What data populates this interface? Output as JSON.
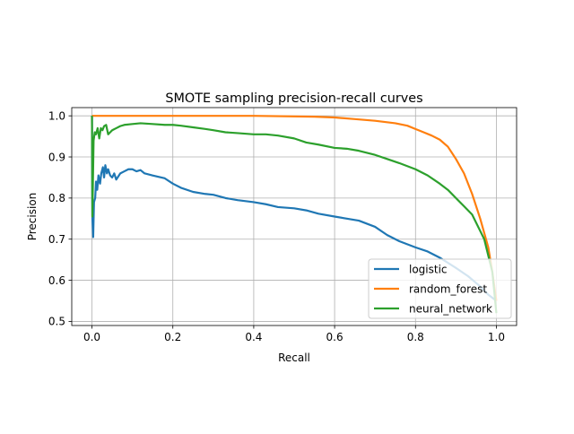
{
  "chart_data": {
    "type": "line",
    "title": "SMOTE sampling precision-recall curves",
    "xlabel": "Recall",
    "ylabel": "Precision",
    "xlim": [
      -0.05,
      1.05
    ],
    "ylim": [
      0.49,
      1.02
    ],
    "xticks": [
      0.0,
      0.2,
      0.4,
      0.6,
      0.8,
      1.0
    ],
    "xtick_labels": [
      "0.0",
      "0.2",
      "0.4",
      "0.6",
      "0.8",
      "1.0"
    ],
    "yticks": [
      0.5,
      0.6,
      0.7,
      0.8,
      0.9,
      1.0
    ],
    "ytick_labels": [
      "0.5",
      "0.6",
      "0.7",
      "0.8",
      "0.9",
      "1.0"
    ],
    "grid": true,
    "legend_position": "lower-right",
    "series": [
      {
        "name": "logistic",
        "color": "#1f77b4",
        "x": [
          0.0,
          0.001,
          0.003,
          0.005,
          0.008,
          0.01,
          0.013,
          0.016,
          0.02,
          0.023,
          0.027,
          0.03,
          0.033,
          0.037,
          0.04,
          0.045,
          0.05,
          0.055,
          0.06,
          0.07,
          0.08,
          0.09,
          0.1,
          0.11,
          0.12,
          0.13,
          0.15,
          0.18,
          0.2,
          0.22,
          0.25,
          0.28,
          0.3,
          0.33,
          0.36,
          0.4,
          0.43,
          0.46,
          0.5,
          0.53,
          0.56,
          0.6,
          0.63,
          0.66,
          0.7,
          0.73,
          0.76,
          0.8,
          0.83,
          0.86,
          0.9,
          0.93,
          0.96,
          0.98,
          1.0
        ],
        "y": [
          1.0,
          0.75,
          0.705,
          0.79,
          0.8,
          0.84,
          0.82,
          0.855,
          0.835,
          0.86,
          0.875,
          0.85,
          0.88,
          0.86,
          0.87,
          0.855,
          0.85,
          0.86,
          0.845,
          0.86,
          0.865,
          0.87,
          0.87,
          0.865,
          0.868,
          0.86,
          0.855,
          0.848,
          0.835,
          0.825,
          0.815,
          0.81,
          0.808,
          0.8,
          0.795,
          0.79,
          0.785,
          0.778,
          0.775,
          0.77,
          0.762,
          0.755,
          0.75,
          0.745,
          0.73,
          0.71,
          0.695,
          0.68,
          0.67,
          0.655,
          0.63,
          0.61,
          0.585,
          0.565,
          0.55
        ]
      },
      {
        "name": "random_forest",
        "color": "#ff7f0e",
        "x": [
          0.0,
          0.001,
          0.05,
          0.2,
          0.4,
          0.55,
          0.6,
          0.65,
          0.7,
          0.75,
          0.78,
          0.8,
          0.82,
          0.84,
          0.86,
          0.88,
          0.9,
          0.92,
          0.94,
          0.96,
          0.98,
          0.99,
          1.0
        ],
        "y": [
          1.0,
          1.0,
          1.0,
          1.0,
          1.0,
          0.998,
          0.996,
          0.992,
          0.988,
          0.982,
          0.976,
          0.968,
          0.96,
          0.952,
          0.942,
          0.925,
          0.895,
          0.86,
          0.81,
          0.75,
          0.68,
          0.62,
          0.55
        ]
      },
      {
        "name": "neural_network",
        "color": "#2ca02c",
        "x": [
          0.0,
          0.001,
          0.004,
          0.007,
          0.01,
          0.014,
          0.018,
          0.022,
          0.026,
          0.03,
          0.035,
          0.04,
          0.05,
          0.06,
          0.07,
          0.08,
          0.1,
          0.12,
          0.15,
          0.18,
          0.2,
          0.22,
          0.25,
          0.28,
          0.3,
          0.33,
          0.36,
          0.4,
          0.43,
          0.46,
          0.5,
          0.53,
          0.56,
          0.6,
          0.63,
          0.66,
          0.7,
          0.73,
          0.76,
          0.8,
          0.83,
          0.86,
          0.88,
          0.9,
          0.92,
          0.94,
          0.96,
          0.97,
          0.98,
          0.99,
          1.0
        ],
        "y": [
          1.0,
          0.755,
          0.94,
          0.96,
          0.955,
          0.97,
          0.945,
          0.97,
          0.965,
          0.975,
          0.978,
          0.955,
          0.965,
          0.97,
          0.975,
          0.978,
          0.98,
          0.982,
          0.98,
          0.978,
          0.978,
          0.976,
          0.972,
          0.968,
          0.965,
          0.96,
          0.958,
          0.955,
          0.955,
          0.952,
          0.945,
          0.935,
          0.93,
          0.922,
          0.92,
          0.915,
          0.905,
          0.895,
          0.885,
          0.87,
          0.855,
          0.835,
          0.82,
          0.8,
          0.78,
          0.76,
          0.72,
          0.7,
          0.66,
          0.62,
          0.52
        ]
      }
    ]
  }
}
